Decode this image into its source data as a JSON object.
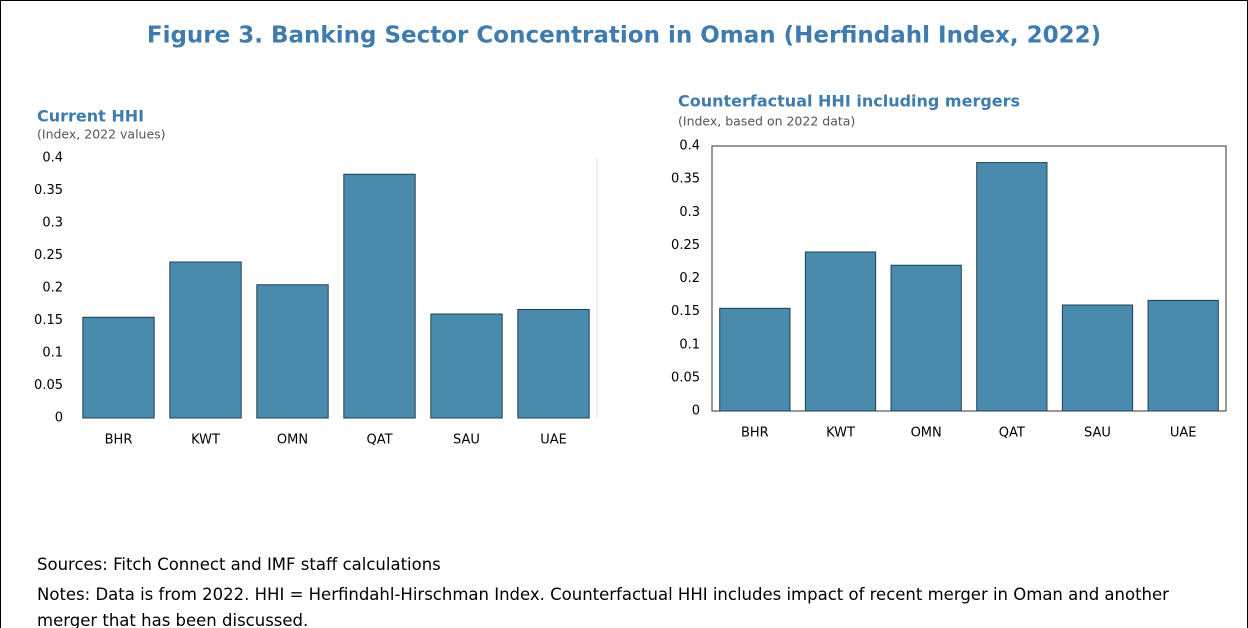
{
  "title": "Figure 3. Banking Sector Concentration in Oman (Herfindahl Index, 2022)",
  "chart_data": [
    {
      "type": "bar",
      "title": "Current HHI",
      "subtitle": "(Index, 2022 values)",
      "categories": [
        "BHR",
        "KWT",
        "OMN",
        "QAT",
        "SAU",
        "UAE"
      ],
      "values": [
        0.155,
        0.24,
        0.205,
        0.375,
        0.16,
        0.167
      ],
      "color": "#4a8aad",
      "ylim": [
        0,
        0.4
      ],
      "yticks": [
        0,
        0.05,
        0.1,
        0.15,
        0.2,
        0.25,
        0.3,
        0.35,
        0.4
      ],
      "grid": false
    },
    {
      "type": "bar",
      "title": "Counterfactual HHI including mergers",
      "subtitle": "(Index, based on 2022 data)",
      "categories": [
        "BHR",
        "KWT",
        "OMN",
        "QAT",
        "SAU",
        "UAE"
      ],
      "values": [
        0.155,
        0.24,
        0.22,
        0.375,
        0.16,
        0.167
      ],
      "color": "#4a8aad",
      "ylim": [
        0,
        0.4
      ],
      "yticks": [
        0,
        0.05,
        0.1,
        0.15,
        0.2,
        0.25,
        0.3,
        0.35,
        0.4
      ],
      "grid": false
    }
  ],
  "sources": "Sources: Fitch Connect and IMF staff calculations",
  "notes": "Notes: Data is from 2022. HHI = Herfindahl-Hirschman Index. Counterfactual HHI includes impact of recent merger in Oman and another merger that has been discussed."
}
